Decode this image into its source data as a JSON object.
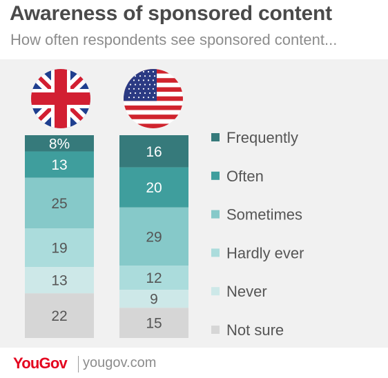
{
  "header": {
    "title": "Awareness of sponsored content",
    "subtitle": "How often respondents see sponsored content..."
  },
  "footer": {
    "brand": "YouGov",
    "website": "yougov.com"
  },
  "colors": {
    "Frequently": "#367a7b",
    "Often": "#3f9e9d",
    "Sometimes": "#86c9c9",
    "Hardly ever": "#abdcdc",
    "Never": "#cde8e8",
    "Not sure": "#d6d6d6",
    "dark_label": "#ffffff",
    "light_label": "#555555"
  },
  "icons": [
    "uk-flag-icon",
    "us-flag-icon"
  ],
  "chart_data": {
    "type": "bar",
    "stacked": true,
    "orientation": "vertical",
    "categories": [
      "UK",
      "US"
    ],
    "series": [
      {
        "name": "Frequently",
        "values": [
          8,
          16
        ],
        "labels": [
          "8%",
          "16"
        ]
      },
      {
        "name": "Often",
        "values": [
          13,
          20
        ],
        "labels": [
          "13",
          "20"
        ]
      },
      {
        "name": "Sometimes",
        "values": [
          25,
          29
        ],
        "labels": [
          "25",
          "29"
        ]
      },
      {
        "name": "Hardly ever",
        "values": [
          19,
          12
        ],
        "labels": [
          "19",
          "12"
        ]
      },
      {
        "name": "Never",
        "values": [
          13,
          9
        ],
        "labels": [
          "13",
          "9"
        ]
      },
      {
        "name": "Not sure",
        "values": [
          22,
          15
        ],
        "labels": [
          "22",
          "15"
        ]
      }
    ],
    "unit": "%",
    "legend_position": "right",
    "grid": false
  }
}
